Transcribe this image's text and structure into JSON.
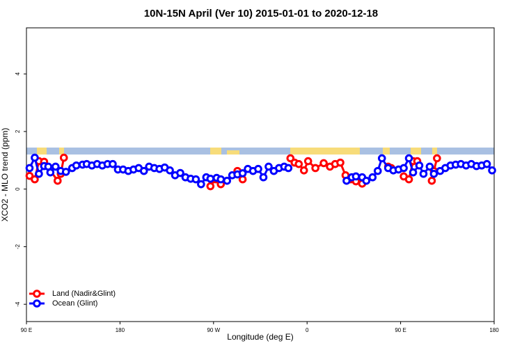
{
  "chart_data": {
    "type": "line",
    "title": "10N-15N April (Ver 10)   2015-01-01 to 2020-12-18",
    "x_label": "Longitude (deg E)",
    "y_label": "XCO2 - MLO trend (ppm)",
    "xlim": [
      90,
      540
    ],
    "ylim": [
      -4.6,
      5.6
    ],
    "xticks": [
      {
        "value": 90,
        "label": "90 E"
      },
      180,
      {
        "value": 270,
        "label": "90 W"
      },
      {
        "value": 360,
        "label": "0"
      },
      {
        "value": 450,
        "label": "90 E"
      },
      {
        "value": 540,
        "label": "180"
      }
    ],
    "yticks": [
      -4,
      -2,
      0,
      2,
      4
    ],
    "legend": "bottom-left",
    "series": [
      {
        "name": "Land (Nadir&Glint)",
        "color": "#ff0000",
        "x": [
          93,
          98,
          102,
          107,
          120,
          123,
          126,
          null,
          267,
          272,
          277,
          null,
          293,
          298,
          null,
          344,
          348,
          352,
          357,
          361,
          368,
          376,
          382,
          387,
          392,
          397,
          402,
          407,
          413,
          null,
          438,
          441,
          null,
          453,
          458,
          462,
          466,
          null,
          480,
          482,
          485
        ],
        "values": [
          0.46,
          0.34,
          0.97,
          0.95,
          0.29,
          0.53,
          1.09,
          null,
          0.1,
          0.34,
          0.17,
          null,
          0.63,
          0.34,
          null,
          1.07,
          0.92,
          0.87,
          0.65,
          0.97,
          0.73,
          0.9,
          0.78,
          0.87,
          0.92,
          0.48,
          0.34,
          0.27,
          0.19,
          null,
          0.78,
          0.73,
          null,
          0.44,
          0.34,
          0.97,
          0.97,
          null,
          0.29,
          0.63,
          1.07
        ]
      },
      {
        "name": "Ocean (Glint)",
        "color": "#0000ff",
        "x": [
          93,
          98,
          102,
          107,
          111,
          113,
          118,
          123,
          128,
          134,
          138,
          144,
          148,
          153,
          158,
          163,
          168,
          173,
          178,
          183,
          188,
          193,
          198,
          203,
          208,
          213,
          218,
          223,
          228,
          233,
          238,
          243,
          248,
          253,
          258,
          263,
          267,
          273,
          277,
          283,
          288,
          293,
          298,
          303,
          308,
          313,
          318,
          323,
          328,
          333,
          338,
          342,
          null,
          398,
          403,
          407,
          413,
          417,
          423,
          428,
          432,
          438,
          443,
          448,
          453,
          458,
          462,
          468,
          472,
          478,
          482,
          488,
          493,
          498,
          503,
          508,
          513,
          518,
          523,
          528,
          533,
          538
        ],
        "values": [
          0.73,
          1.09,
          0.53,
          0.8,
          0.78,
          0.58,
          0.78,
          0.63,
          0.6,
          0.73,
          0.82,
          0.85,
          0.87,
          0.82,
          0.87,
          0.82,
          0.87,
          0.87,
          0.68,
          0.68,
          0.63,
          0.68,
          0.73,
          0.63,
          0.78,
          0.73,
          0.7,
          0.75,
          0.65,
          0.48,
          0.56,
          0.41,
          0.36,
          0.34,
          0.17,
          0.41,
          0.36,
          0.39,
          0.34,
          0.29,
          0.48,
          0.51,
          0.55,
          0.7,
          0.63,
          0.7,
          0.41,
          0.78,
          0.63,
          0.73,
          0.78,
          0.73,
          null,
          0.29,
          0.41,
          0.44,
          0.41,
          0.29,
          0.41,
          0.63,
          1.07,
          0.73,
          0.65,
          0.68,
          0.73,
          1.07,
          0.58,
          0.82,
          0.53,
          0.78,
          0.53,
          0.63,
          0.73,
          0.82,
          0.85,
          0.87,
          0.82,
          0.87,
          0.8,
          0.82,
          0.87,
          0.65
        ]
      }
    ]
  }
}
